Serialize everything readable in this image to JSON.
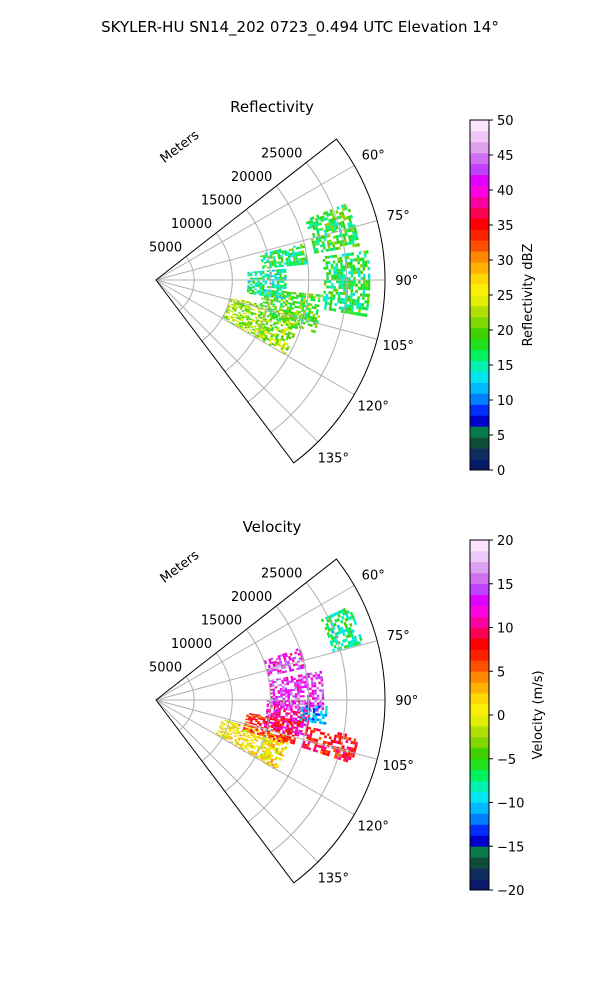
{
  "figure": {
    "title": "SKYLER-HU  SN14_202  0723_0.494 UTC Elevation 14°"
  },
  "chart_data": [
    {
      "type": "heatmap",
      "projection": "polar-sector",
      "title": "Reflectivity",
      "radial_label": "Meters",
      "r_range": [
        0,
        30000
      ],
      "r_ticks": [
        5000,
        10000,
        15000,
        20000,
        25000
      ],
      "theta_range_deg": [
        52,
        143
      ],
      "theta_ticks": [
        "60°",
        "75°",
        "90°",
        "105°",
        "120°",
        "135°"
      ],
      "grid": true,
      "colorbar": {
        "label": "Reflectivity dBZ",
        "range": [
          0,
          50
        ],
        "ticks": [
          "0",
          "5",
          "10",
          "15",
          "20",
          "25",
          "30",
          "35",
          "40",
          "45",
          "50"
        ],
        "colors": [
          "#0a1a6a",
          "#0d2d5c",
          "#0e4d3a",
          "#0a7a4a",
          "#0000cc",
          "#0030ff",
          "#0080ff",
          "#00b8ff",
          "#00e5f0",
          "#00f0b0",
          "#00f060",
          "#20e020",
          "#40d000",
          "#80d800",
          "#b0e000",
          "#e0f000",
          "#f8f000",
          "#ffd800",
          "#ffb000",
          "#ff8800",
          "#ff5000",
          "#ff2000",
          "#ff0000",
          "#ff0050",
          "#ff00a0",
          "#ff00e0",
          "#e000ff",
          "#c040ff",
          "#d070f0",
          "#e0a0f0",
          "#f0c8f8",
          "#fbe4fb"
        ]
      },
      "echo_regions": [
        {
          "r_m": [
            10000,
            19500
          ],
          "theta_deg": [
            103,
            120
          ],
          "value": 22
        },
        {
          "r_m": [
            14000,
            22000
          ],
          "theta_deg": [
            95,
            108
          ],
          "value": 19
        },
        {
          "r_m": [
            12000,
            17000
          ],
          "theta_deg": [
            85,
            98
          ],
          "value": 16
        },
        {
          "r_m": [
            14000,
            20000
          ],
          "theta_deg": [
            76,
            84
          ],
          "value": 17
        },
        {
          "r_m": [
            21000,
            27000
          ],
          "theta_deg": [
            68,
            80
          ],
          "value": 18
        },
        {
          "r_m": [
            22000,
            28000
          ],
          "theta_deg": [
            82,
            100
          ],
          "value": 17
        }
      ]
    },
    {
      "type": "heatmap",
      "projection": "polar-sector",
      "title": "Velocity",
      "radial_label": "Meters",
      "r_range": [
        0,
        30000
      ],
      "r_ticks": [
        5000,
        10000,
        15000,
        20000,
        25000
      ],
      "theta_range_deg": [
        52,
        143
      ],
      "theta_ticks": [
        "60°",
        "75°",
        "90°",
        "105°",
        "120°",
        "135°"
      ],
      "grid": true,
      "colorbar": {
        "label": "Velocity (m/s)",
        "range": [
          -20,
          20
        ],
        "ticks": [
          "−20",
          "−15",
          "−10",
          "−5",
          "0",
          "5",
          "10",
          "15",
          "20"
        ],
        "colors": [
          "#0a1a6a",
          "#0d2d5c",
          "#0e4d3a",
          "#0a7a4a",
          "#0000cc",
          "#0030ff",
          "#0080ff",
          "#00b8ff",
          "#00e5f0",
          "#00f0b0",
          "#00f060",
          "#20e020",
          "#40d000",
          "#80d800",
          "#b0e000",
          "#e0f000",
          "#f8f000",
          "#ffd800",
          "#ffb000",
          "#ff8800",
          "#ff5000",
          "#ff2000",
          "#ff0000",
          "#ff0050",
          "#ff00a0",
          "#ff00e0",
          "#e000ff",
          "#c040ff",
          "#d070f0",
          "#e0a0f0",
          "#f0c8f8",
          "#fbe4fb"
        ]
      },
      "echo_regions": [
        {
          "r_m": [
            9000,
            18000
          ],
          "theta_deg": [
            106,
            120
          ],
          "value": 1
        },
        {
          "r_m": [
            12000,
            19000
          ],
          "theta_deg": [
            98,
            108
          ],
          "value": 7
        },
        {
          "r_m": [
            14500,
            20000
          ],
          "theta_deg": [
            90,
            104
          ],
          "value": 11
        },
        {
          "r_m": [
            15000,
            22000
          ],
          "theta_deg": [
            80,
            94
          ],
          "value": 14
        },
        {
          "r_m": [
            19000,
            22500
          ],
          "theta_deg": [
            92,
            98
          ],
          "value": -11
        },
        {
          "r_m": [
            15000,
            20000
          ],
          "theta_deg": [
            70,
            78
          ],
          "value": 13
        },
        {
          "r_m": [
            24000,
            28000
          ],
          "theta_deg": [
            64,
            74
          ],
          "value": -7
        },
        {
          "r_m": [
            20000,
            27000
          ],
          "theta_deg": [
            100,
            108
          ],
          "value": 8
        }
      ]
    }
  ]
}
